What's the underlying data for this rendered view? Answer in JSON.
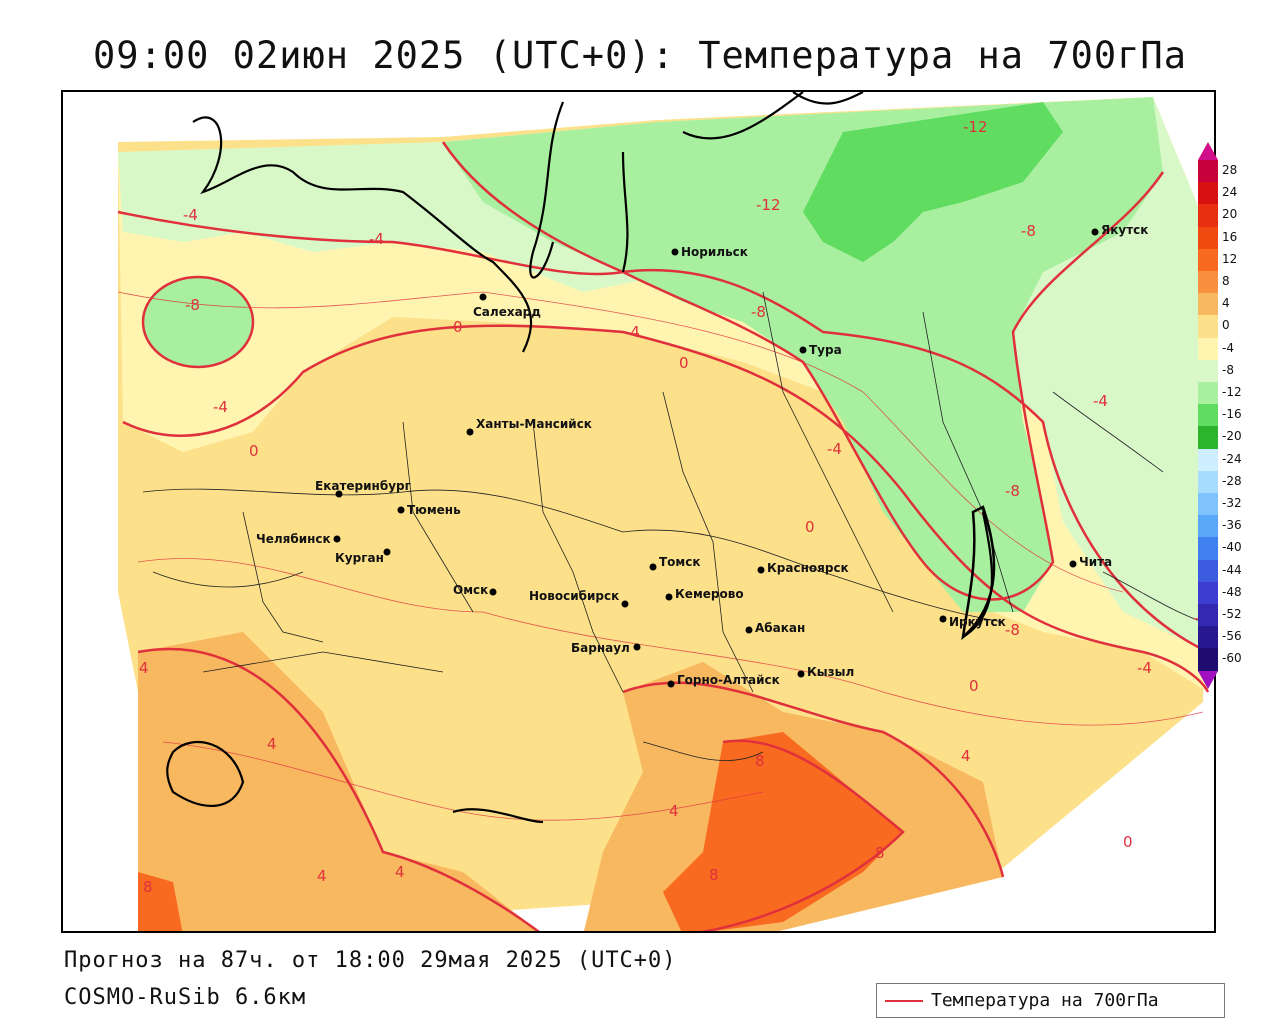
{
  "title": "09:00 02июн 2025 (UTC+0): Температура на 700гПа",
  "footer": {
    "forecast": "Прогноз на 87ч. от 18:00 29мая 2025 (UTC+0)",
    "model": "COSMO-RuSib 6.6км"
  },
  "legend": {
    "series_label": "Температура на 700гПа",
    "line_color": "#e0303c"
  },
  "colorbar": {
    "ticks": [
      "28",
      "24",
      "20",
      "16",
      "12",
      "8",
      "4",
      "0",
      "-4",
      "-8",
      "-12",
      "-16",
      "-20",
      "-24",
      "-28",
      "-32",
      "-36",
      "-40",
      "-44",
      "-48",
      "-52",
      "-56",
      "-60"
    ],
    "colors": [
      "#c8003c",
      "#d81010",
      "#e83010",
      "#f04a10",
      "#f86a20",
      "#f89040",
      "#f8b860",
      "#fce08a",
      "#fff4b0",
      "#d8f8c8",
      "#a8f0a0",
      "#60dc60",
      "#2cb42c",
      "#cfeeff",
      "#a8dcff",
      "#80c4ff",
      "#5aa8f8",
      "#4080f0",
      "#3c5ce0",
      "#3c3cd0",
      "#3428b0",
      "#281890",
      "#200c70"
    ]
  },
  "cities": [
    {
      "name": "Норильск"
    },
    {
      "name": "Якутск"
    },
    {
      "name": "Салехард"
    },
    {
      "name": "Тура"
    },
    {
      "name": "Ханты-Мансийск"
    },
    {
      "name": "Екатеринбург"
    },
    {
      "name": "Тюмень"
    },
    {
      "name": "Челябинск"
    },
    {
      "name": "Курган"
    },
    {
      "name": "Омск"
    },
    {
      "name": "Новосибирск"
    },
    {
      "name": "Томск"
    },
    {
      "name": "Кемерово"
    },
    {
      "name": "Красноярск"
    },
    {
      "name": "Абакан"
    },
    {
      "name": "Барнаул"
    },
    {
      "name": "Горно-Алтайск"
    },
    {
      "name": "Кызыл"
    },
    {
      "name": "Иркутск"
    },
    {
      "name": "Чита"
    }
  ],
  "isotherm_labels": [
    "-12",
    "-12",
    "-8",
    "-8",
    "-8",
    "-8",
    "-8",
    "-4",
    "-4",
    "-4",
    "-4",
    "-4",
    "-4",
    "-4",
    "-4",
    "0",
    "0",
    "0",
    "0",
    "0",
    "0",
    "4",
    "4",
    "4",
    "4",
    "4",
    "4",
    "8",
    "8",
    "8",
    "8"
  ]
}
